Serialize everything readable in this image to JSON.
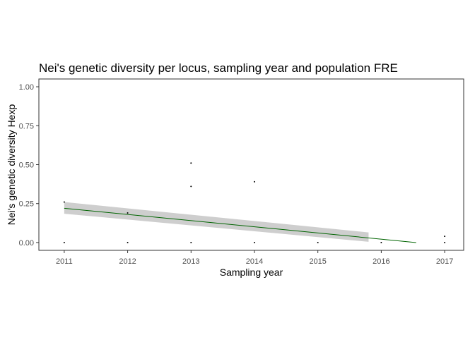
{
  "chart_data": {
    "type": "scatter",
    "title": "Nei's genetic diversity per locus, sampling year and population FRE",
    "xlabel": "Sampling year",
    "ylabel": "Nei's genetic diversity Hexp",
    "xlim": [
      2010.6,
      2017.3
    ],
    "ylim": [
      -0.05,
      1.05
    ],
    "x_ticks": [
      2011,
      2012,
      2013,
      2014,
      2015,
      2016,
      2017
    ],
    "y_ticks": [
      0.0,
      0.25,
      0.5,
      0.75,
      1.0
    ],
    "y_tick_labels": [
      "0.00",
      "0.25",
      "0.50",
      "0.75",
      "1.00"
    ],
    "grid": false,
    "legend": "none",
    "colors": {
      "points": "#000000",
      "trend": "#006400",
      "band": "#bdbdbd"
    },
    "points": [
      {
        "x": 2011,
        "y": 0.26
      },
      {
        "x": 2011,
        "y": 0.0
      },
      {
        "x": 2012,
        "y": 0.19
      },
      {
        "x": 2012,
        "y": 0.0
      },
      {
        "x": 2013,
        "y": 0.51
      },
      {
        "x": 2013,
        "y": 0.36
      },
      {
        "x": 2013,
        "y": 0.0
      },
      {
        "x": 2014,
        "y": 0.39
      },
      {
        "x": 2014,
        "y": 0.0
      },
      {
        "x": 2015,
        "y": 0.0
      },
      {
        "x": 2016,
        "y": 0.0
      },
      {
        "x": 2017,
        "y": 0.04
      },
      {
        "x": 2017,
        "y": 0.0
      }
    ],
    "trend_line": {
      "x": [
        2011,
        2016.55
      ],
      "y": [
        0.22,
        0.0
      ]
    },
    "confidence_band": {
      "x": [
        2011,
        2015.8
      ],
      "upper": [
        0.26,
        0.065
      ],
      "lower": [
        0.185,
        0.005
      ]
    }
  }
}
